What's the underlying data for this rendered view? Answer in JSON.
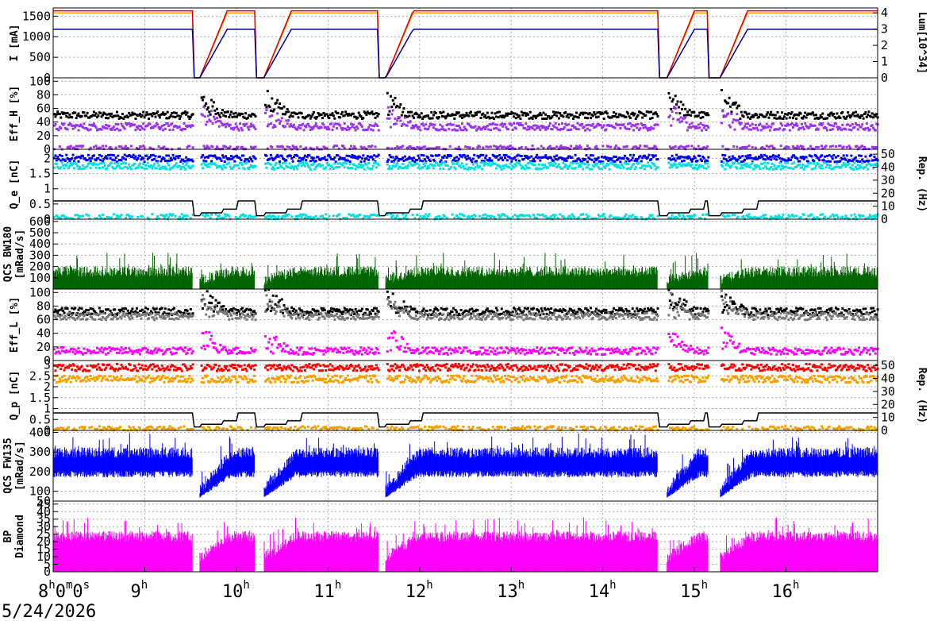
{
  "date": "5/24/2026",
  "colors": {
    "orange": "#f5a000",
    "red": "#e00000",
    "navy": "#000090",
    "purple": "#9933ee",
    "black": "#000000",
    "blue": "#0000ee",
    "cyan": "#00e0e0",
    "green": "#006400",
    "gray": "#777777",
    "magenta": "#ff00ff",
    "bright_red": "#ff0000",
    "fw_blue": "#0000ff"
  },
  "chart_data": {
    "type": "line",
    "x_unit": "hour",
    "xlim": [
      8.0,
      17.0
    ],
    "x_ticks": [
      {
        "h": "8",
        "sup": "h",
        "rest": "0",
        "sup2": "m",
        "rest2": "0",
        "sup3": "s"
      },
      {
        "h": "9",
        "sup": "h"
      },
      {
        "h": "10",
        "sup": "h"
      },
      {
        "h": "11",
        "sup": "h"
      },
      {
        "h": "12",
        "sup": "h"
      },
      {
        "h": "13",
        "sup": "h"
      },
      {
        "h": "14",
        "sup": "h"
      },
      {
        "h": "15",
        "sup": "h"
      },
      {
        "h": "16",
        "sup": "h"
      }
    ],
    "beam_off_periods": [
      [
        9.52,
        9.6
      ],
      [
        10.2,
        10.3
      ],
      [
        11.55,
        11.63
      ],
      [
        14.6,
        14.7
      ],
      [
        15.15,
        15.28
      ]
    ],
    "panels": [
      {
        "id": "current",
        "ylabel": "I [mA]",
        "ylim": [
          0,
          1700
        ],
        "yticks": [
          "0",
          "500",
          "1000",
          "1500"
        ],
        "ytick_values": [
          0,
          500,
          1000,
          1500
        ],
        "right_label": "Lum[10^34]",
        "right_ticks": [
          "0",
          "1",
          "2",
          "3",
          "4"
        ],
        "series": [
          {
            "color": "orange",
            "style": "line",
            "level": 1580
          },
          {
            "color": "red",
            "style": "line",
            "level": 1630
          },
          {
            "color": "navy",
            "style": "line",
            "level": 1180
          }
        ]
      },
      {
        "id": "effh",
        "ylabel": "Eff_H [%]",
        "ylim": [
          0,
          105
        ],
        "yticks": [
          "0",
          "20",
          "40",
          "60",
          "80",
          "100"
        ],
        "ytick_values": [
          0,
          20,
          40,
          60,
          80,
          100
        ],
        "series": [
          {
            "color": "black",
            "style": "dots",
            "level": 50
          },
          {
            "color": "purple",
            "style": "dots",
            "level": 33
          },
          {
            "color": "purple",
            "style": "dots",
            "level": 0
          }
        ]
      },
      {
        "id": "qe",
        "ylabel": "Q_e [nC]",
        "ylim": [
          0,
          2.3
        ],
        "yticks": [
          "0",
          "0.5",
          "1",
          "1.5",
          "2"
        ],
        "ytick_values": [
          0,
          0.5,
          1,
          1.5,
          2
        ],
        "right_label": "Rep. (Hz)",
        "right_ticks": [
          "0",
          "10",
          "20",
          "30",
          "40",
          "50"
        ],
        "series": [
          {
            "color": "blue",
            "style": "dots",
            "level": 2.0
          },
          {
            "color": "cyan",
            "style": "dots",
            "level": 1.75
          },
          {
            "color": "cyan",
            "style": "dots",
            "level": 0.05
          },
          {
            "color": "black",
            "style": "step",
            "level": 0.6
          }
        ]
      },
      {
        "id": "bw180",
        "ylabel": "QCS BW180",
        "ylabel2": "[mRad/s]",
        "ylim": [
          0,
          620
        ],
        "yticks": [
          "100",
          "200",
          "300",
          "400",
          "500",
          "600"
        ],
        "ytick_values": [
          100,
          200,
          300,
          400,
          500,
          600
        ],
        "series": [
          {
            "color": "green",
            "style": "bars",
            "level": 110
          }
        ]
      },
      {
        "id": "effl",
        "ylabel": "Eff_L [%]",
        "ylim": [
          0,
          105
        ],
        "yticks": [
          "0",
          "20",
          "40",
          "60",
          "80",
          "100"
        ],
        "ytick_values": [
          0,
          20,
          40,
          60,
          80,
          100
        ],
        "series": [
          {
            "color": "black",
            "style": "dots",
            "level": 72
          },
          {
            "color": "gray",
            "style": "dots",
            "level": 65
          },
          {
            "color": "magenta",
            "style": "dots",
            "level": 14
          }
        ]
      },
      {
        "id": "qp",
        "ylabel": "Q_p [nC]",
        "ylim": [
          0,
          3.2
        ],
        "yticks": [
          "0",
          "0.5",
          "1",
          "1.5",
          "2",
          "2.5",
          "3"
        ],
        "ytick_values": [
          0,
          0.5,
          1,
          1.5,
          2,
          2.5,
          3
        ],
        "right_label": "Rep. (Hz)",
        "right_ticks": [
          "0",
          "10",
          "20",
          "30",
          "40",
          "50"
        ],
        "series": [
          {
            "color": "bright_red",
            "style": "dots",
            "level": 2.88
          },
          {
            "color": "orange",
            "style": "dots",
            "level": 2.35
          },
          {
            "color": "orange",
            "style": "dots",
            "level": 0.03
          },
          {
            "color": "black",
            "style": "step",
            "level": 0.8
          }
        ]
      },
      {
        "id": "fw135",
        "ylabel": "QCS FW135",
        "ylabel2": "[mRad/s]",
        "ylim": [
          50,
          410
        ],
        "yticks": [
          "50",
          "100",
          "200",
          "300",
          "400"
        ],
        "ytick_values": [
          50,
          100,
          200,
          300,
          400
        ],
        "series": [
          {
            "color": "fw_blue",
            "style": "bars",
            "level": 270
          }
        ]
      },
      {
        "id": "bp",
        "ylabel": "BP",
        "ylabel2": "Diamond",
        "ylim": [
          0,
          47
        ],
        "yticks": [
          "0",
          "5",
          "10",
          "15",
          "20",
          "25",
          "30",
          "35",
          "40",
          "45"
        ],
        "ytick_values": [
          0,
          5,
          10,
          15,
          20,
          25,
          30,
          35,
          40,
          45
        ],
        "series": [
          {
            "color": "magenta",
            "style": "bars",
            "level": 20
          }
        ]
      }
    ]
  }
}
